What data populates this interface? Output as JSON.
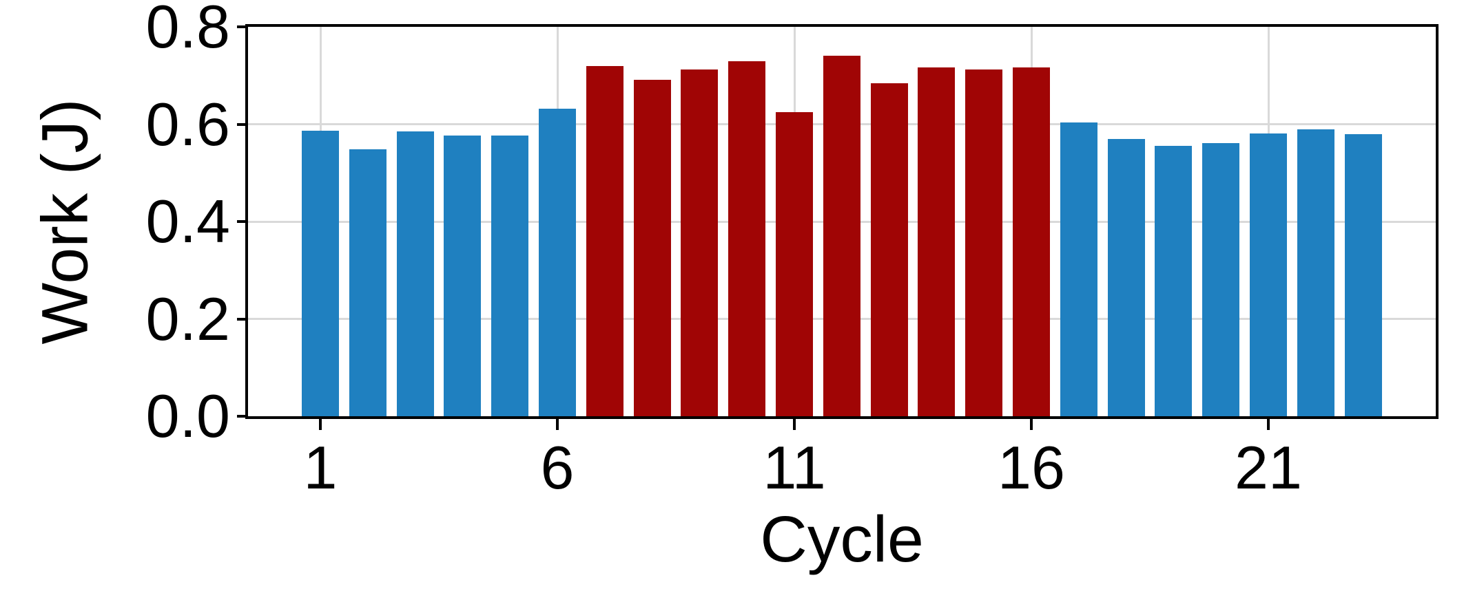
{
  "figure": {
    "background": "#ffffff",
    "axis_color": "#000000",
    "gridline_color": "#d9d9d9"
  },
  "chart_data": {
    "type": "bar",
    "title": "",
    "xlabel": "Cycle",
    "ylabel": "Work (J)",
    "x": [
      1,
      2,
      3,
      4,
      5,
      6,
      7,
      8,
      9,
      10,
      11,
      12,
      13,
      14,
      15,
      16,
      17,
      18,
      19,
      20,
      21,
      22,
      23
    ],
    "values": [
      0.586,
      0.549,
      0.585,
      0.577,
      0.577,
      0.632,
      0.72,
      0.691,
      0.712,
      0.73,
      0.625,
      0.74,
      0.684,
      0.716,
      0.713,
      0.716,
      0.604,
      0.569,
      0.555,
      0.561,
      0.581,
      0.59,
      0.58
    ],
    "bar_colors": [
      "blue",
      "blue",
      "blue",
      "blue",
      "blue",
      "blue",
      "red",
      "red",
      "red",
      "red",
      "red",
      "red",
      "red",
      "red",
      "red",
      "red",
      "blue",
      "blue",
      "blue",
      "blue",
      "blue",
      "blue",
      "blue"
    ],
    "palette": {
      "blue": "#1f80c0",
      "red": "#a00505"
    },
    "xticks": [
      1,
      6,
      11,
      16,
      21
    ],
    "xtick_labels": [
      "1",
      "6",
      "11",
      "16",
      "21"
    ],
    "yticks": [
      0.0,
      0.2,
      0.4,
      0.6,
      0.8
    ],
    "ytick_labels": [
      "0.0",
      "0.2",
      "0.4",
      "0.6",
      "0.8"
    ],
    "ylim": [
      0,
      0.8
    ],
    "grid": true,
    "legend_position": "none"
  }
}
